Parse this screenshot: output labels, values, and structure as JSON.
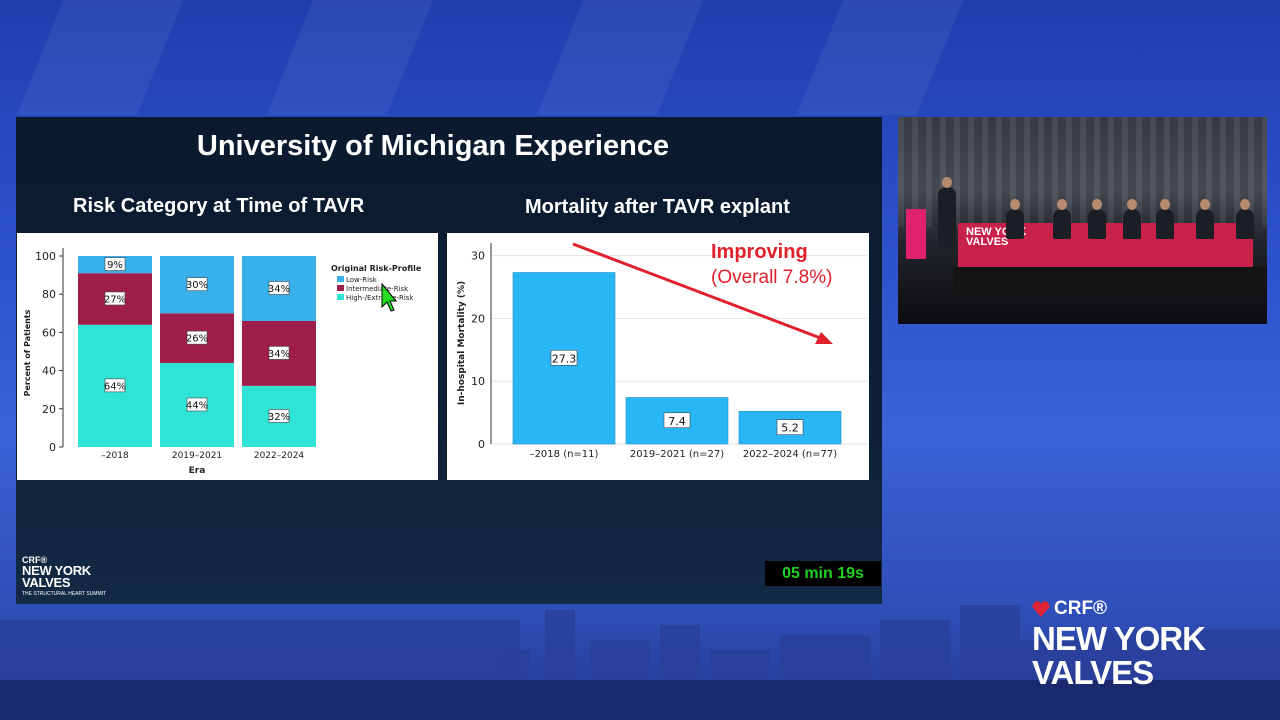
{
  "slide": {
    "title": "University of Michigan Experience",
    "left_subtitle": "Risk Category at Time of TAVR",
    "right_subtitle": "Mortality after TAVR explant",
    "timer": "05 min 19s",
    "logo_crf": "CRF®",
    "logo_line1": "NEW YORK",
    "logo_line2": "VALVES",
    "logo_tagline": "THE STRUCTURAL HEART SUMMIT"
  },
  "chart_data": [
    {
      "type": "bar",
      "stacked": true,
      "categories": [
        "–2018",
        "2019–2021",
        "2022–2024"
      ],
      "series": [
        {
          "name": "High-/Extreme-Risk",
          "values": [
            64,
            44,
            32
          ],
          "labels": [
            "64%",
            "44%",
            "32%"
          ],
          "color": "#2fe3d6"
        },
        {
          "name": "Intermediate-Risk",
          "values": [
            27,
            26,
            34
          ],
          "labels": [
            "27%",
            "26%",
            "34%"
          ],
          "color": "#a01e4c"
        },
        {
          "name": "Low-Risk",
          "values": [
            9,
            30,
            34
          ],
          "labels": [
            "9%",
            "30%",
            "34%"
          ],
          "color": "#3ab0ea"
        }
      ],
      "xlabel": "Era",
      "ylabel": "Percent of Patients",
      "ylim": [
        0,
        100
      ],
      "yticks": [
        "0",
        "20",
        "40",
        "60",
        "80",
        "100"
      ],
      "legend_title": "Original Risk-Profile",
      "legend_order": [
        "Low-Risk",
        "Intermediate-Risk",
        "High-/Extreme-Risk"
      ],
      "legend_position": "right"
    },
    {
      "type": "bar",
      "categories": [
        "–2018 (n=11)",
        "2019–2021 (n=27)",
        "2022–2024 (n=77)"
      ],
      "values": [
        27.3,
        7.4,
        5.2
      ],
      "labels": [
        "27.3",
        "7.4",
        "5.2"
      ],
      "ylabel": "In-hospital Mortality (%)",
      "ylim": [
        0,
        32
      ],
      "yticks": [
        "0",
        "10",
        "20",
        "30"
      ],
      "grid": true,
      "bar_color": "#29b6f6",
      "annotation": {
        "line1": "Improving",
        "line2": "(Overall 7.8%)",
        "color": "#e0202a"
      }
    }
  ],
  "big_logo": {
    "crf": "CRF®",
    "line1": "NEW YORK",
    "line2": "VALVES"
  },
  "camera": {
    "banner_line1": "NEW YORK",
    "banner_line2": "VALVES"
  }
}
